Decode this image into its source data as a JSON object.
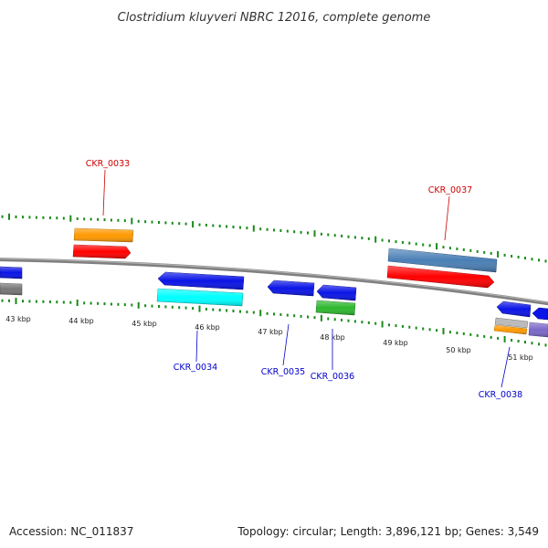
{
  "title": "Clostridium kluyveri NBRC 12016, complete genome",
  "footer": {
    "accession_label": "Accession: NC_011837",
    "summary": "Topology: circular; Length: 3,896,121 bp; Genes: 3,549"
  },
  "tick_labels": [
    "43 kbp",
    "44 kbp",
    "45 kbp",
    "46 kbp",
    "47 kbp",
    "48 kbp",
    "49 kbp",
    "50 kbp",
    "51 kbp"
  ],
  "gene_labels": [
    {
      "name": "CKR_0033",
      "color": "#cc0000",
      "strand": "forward"
    },
    {
      "name": "CKR_0037",
      "color": "#cc0000",
      "strand": "forward"
    },
    {
      "name": "CKR_0034",
      "color": "#0000cc",
      "strand": "reverse"
    },
    {
      "name": "CKR_0035",
      "color": "#0000cc",
      "strand": "reverse"
    },
    {
      "name": "CKR_0036",
      "color": "#0000cc",
      "strand": "reverse"
    },
    {
      "name": "CKR_0038",
      "color": "#0000cc",
      "strand": "reverse"
    }
  ],
  "colors": {
    "backbone": "#808080",
    "tick": "#1a8a1a",
    "gene_blue": "#0a14e6",
    "gene_red": "#ff0000",
    "gene_orange": "#ff9900",
    "gene_cyan": "#00ffff",
    "gene_steelblue": "#4a7fb5",
    "gene_green": "#2eb82e",
    "gene_gray": "#777777",
    "gene_purple": "#7b68c8"
  }
}
